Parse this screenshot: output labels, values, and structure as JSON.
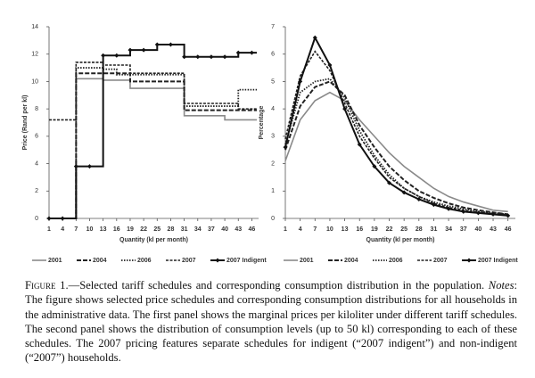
{
  "chart_data": [
    {
      "type": "line",
      "step": true,
      "y_label": "Price (Rand per kl)",
      "x_label": "Quantity (kl per month)",
      "x": [
        1,
        4,
        7,
        10,
        13,
        16,
        19,
        22,
        25,
        28,
        31,
        34,
        37,
        40,
        43,
        46
      ],
      "xlim": [
        1,
        47.5
      ],
      "xticks": [
        1,
        4,
        7,
        10,
        13,
        16,
        19,
        22,
        25,
        28,
        31,
        34,
        37,
        40,
        43,
        46
      ],
      "ylim": [
        0,
        14
      ],
      "yticks": [
        0,
        2,
        4,
        6,
        8,
        10,
        12,
        14
      ],
      "series": [
        {
          "name": "2001",
          "color": "#8a8a8a",
          "dash": "solid",
          "width": 1.6,
          "values": [
            0,
            0,
            10.2,
            10.2,
            10.1,
            10.1,
            9.5,
            9.5,
            9.5,
            9.5,
            7.5,
            7.5,
            7.5,
            7.2,
            7.2,
            7.2
          ]
        },
        {
          "name": "2004",
          "color": "#222222",
          "dash": "dashed",
          "width": 2,
          "values": [
            0,
            0,
            10.6,
            10.6,
            10.6,
            10.6,
            10.0,
            10.0,
            10.0,
            10.0,
            7.9,
            7.9,
            7.9,
            7.9,
            7.9,
            7.9
          ]
        },
        {
          "name": "2006",
          "color": "#222222",
          "dash": "dotted",
          "width": 1.8,
          "values": [
            0,
            0,
            11.0,
            11.0,
            10.9,
            10.5,
            10.5,
            10.5,
            10.5,
            10.5,
            8.2,
            8.2,
            8.2,
            8.2,
            9.4,
            9.4
          ]
        },
        {
          "name": "2007",
          "color": "#222222",
          "dash": "longdash",
          "width": 1.6,
          "values": [
            7.2,
            7.2,
            11.4,
            11.4,
            11.2,
            11.2,
            10.6,
            10.6,
            10.6,
            10.6,
            8.4,
            8.4,
            8.4,
            8.4,
            8.0,
            8.0
          ]
        },
        {
          "name": "2007 Indigent",
          "color": "#111111",
          "dash": "solid",
          "width": 2,
          "marker": "diamond",
          "values": [
            0,
            0,
            3.8,
            3.8,
            11.9,
            11.9,
            12.3,
            12.3,
            12.7,
            12.7,
            11.8,
            11.8,
            11.8,
            11.8,
            12.1,
            12.1
          ]
        }
      ]
    },
    {
      "type": "line",
      "step": false,
      "y_label": "Percentage",
      "x_label": "Quantity (kl per month)",
      "x": [
        1,
        4,
        7,
        10,
        13,
        16,
        19,
        22,
        25,
        28,
        31,
        34,
        37,
        40,
        43,
        46
      ],
      "xlim": [
        1,
        47.5
      ],
      "xticks": [
        1,
        4,
        7,
        10,
        13,
        16,
        19,
        22,
        25,
        28,
        31,
        34,
        37,
        40,
        43,
        46
      ],
      "ylim": [
        0,
        7
      ],
      "yticks": [
        0,
        1,
        2,
        3,
        4,
        5,
        6,
        7
      ],
      "series": [
        {
          "name": "2001",
          "color": "#8a8a8a",
          "dash": "solid",
          "width": 1.6,
          "values": [
            2.1,
            3.6,
            4.3,
            4.6,
            4.3,
            3.6,
            3.0,
            2.4,
            1.9,
            1.5,
            1.1,
            0.8,
            0.6,
            0.45,
            0.3,
            0.25
          ]
        },
        {
          "name": "2004",
          "color": "#222222",
          "dash": "dashed",
          "width": 2,
          "values": [
            2.5,
            4.1,
            4.8,
            5.0,
            4.5,
            3.4,
            2.6,
            1.9,
            1.4,
            1.0,
            0.75,
            0.55,
            0.4,
            0.3,
            0.22,
            0.15
          ]
        },
        {
          "name": "2006",
          "color": "#222222",
          "dash": "dotted",
          "width": 1.8,
          "values": [
            2.7,
            4.6,
            5.0,
            5.1,
            4.4,
            3.2,
            2.3,
            1.6,
            1.1,
            0.8,
            0.6,
            0.45,
            0.35,
            0.25,
            0.2,
            0.15
          ]
        },
        {
          "name": "2007",
          "color": "#222222",
          "dash": "longdash",
          "width": 1.6,
          "values": [
            2.9,
            5.2,
            6.1,
            5.4,
            4.2,
            3.0,
            2.2,
            1.5,
            1.1,
            0.8,
            0.55,
            0.4,
            0.3,
            0.22,
            0.18,
            0.12
          ]
        },
        {
          "name": "2007 Indigent",
          "color": "#111111",
          "dash": "solid",
          "width": 2,
          "marker": "diamond",
          "values": [
            2.6,
            5.0,
            6.6,
            5.6,
            4.0,
            2.7,
            1.9,
            1.3,
            0.95,
            0.7,
            0.5,
            0.35,
            0.25,
            0.2,
            0.15,
            0.1
          ]
        }
      ]
    }
  ],
  "caption": {
    "label": "Figure 1.",
    "title": "—Selected tariff schedules and corresponding consumption distribution in the population. ",
    "notes_label": "Notes",
    "notes": ": The figure shows selected price schedules and corresponding consumption distributions for all households in the administrative data. The first panel shows the marginal prices per kiloliter under different tariff schedules. The second panel shows the distribution of consumption levels (up to 50 kl) corresponding to each of these schedules. The 2007 pricing features separate schedules for indigent (“2007 indigent”) and non-indigent (“2007”) households."
  }
}
